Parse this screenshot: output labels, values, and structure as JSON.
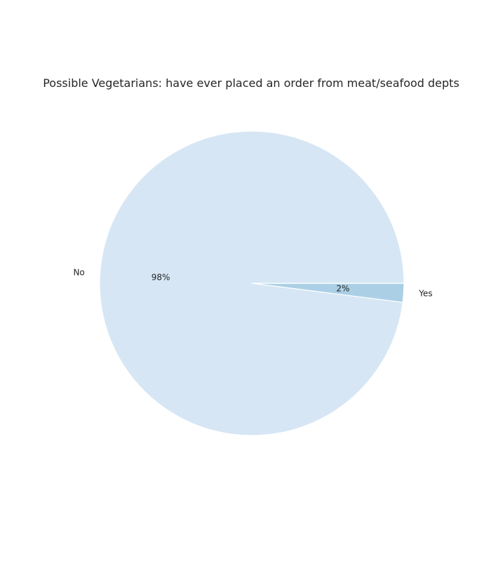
{
  "chart_data": {
    "type": "pie",
    "title": "Possible Vegetarians: have ever placed an order from meat/seafood depts",
    "categories": [
      "Yes",
      "No"
    ],
    "values": [
      2,
      98
    ],
    "percent_labels": [
      "2%",
      "98%"
    ],
    "colors": [
      "#abd0e6",
      "#d6e6f4"
    ],
    "start_angle_deg": 0,
    "direction": "clockwise-on-screen",
    "wedge_edge_color": "#ffffff"
  }
}
